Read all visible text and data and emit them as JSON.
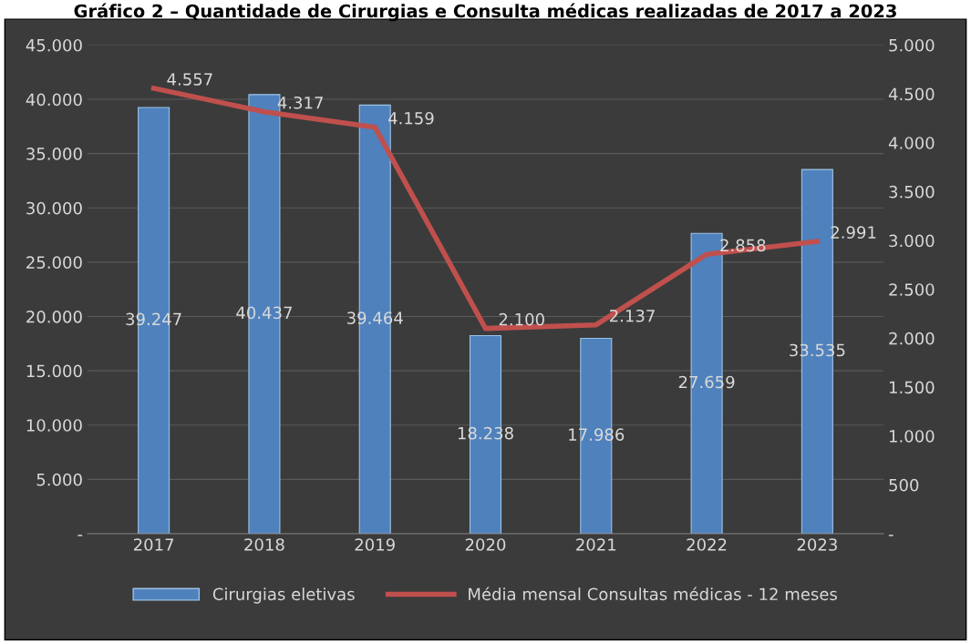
{
  "chart_data": {
    "type": "bar",
    "title": "Gráfico 2 – Quantidade de Cirurgias e Consulta médicas realizadas de 2017 a 2023",
    "categories": [
      "2017",
      "2018",
      "2019",
      "2020",
      "2021",
      "2022",
      "2023"
    ],
    "series": [
      {
        "name": "Cirurgias eletivas",
        "color": "#4f81bd",
        "values": [
          39247,
          40437,
          39464,
          18238,
          17986,
          27659,
          33535
        ],
        "value_labels": [
          "39.247",
          "40.437",
          "39.464",
          "18.238",
          "17.986",
          "27.659",
          "33.535"
        ]
      },
      {
        "name": "Média mensal Consultas médicas - 12 meses",
        "type": "line",
        "axis": "y2",
        "color": "#c0504d",
        "values": [
          4557,
          4317,
          4159,
          2100,
          2137,
          2858,
          2991
        ],
        "value_labels": [
          "4.557",
          "4.317",
          "4.159",
          "2.100",
          "2.137",
          "2.858",
          "2.991"
        ]
      }
    ],
    "ylim": [
      0,
      45000
    ],
    "yticks": [
      {
        "value": 0,
        "label": "-"
      },
      {
        "value": 5000,
        "label": "5.000"
      },
      {
        "value": 10000,
        "label": "10.000"
      },
      {
        "value": 15000,
        "label": "15.000"
      },
      {
        "value": 20000,
        "label": "20.000"
      },
      {
        "value": 25000,
        "label": "25.000"
      },
      {
        "value": 30000,
        "label": "30.000"
      },
      {
        "value": 35000,
        "label": "35.000"
      },
      {
        "value": 40000,
        "label": "40.000"
      },
      {
        "value": 45000,
        "label": "45.000"
      }
    ],
    "y2lim": [
      0,
      5000
    ],
    "y2ticks": [
      {
        "value": 0,
        "label": "-"
      },
      500,
      {
        "value": 1000,
        "label": "1.000"
      },
      {
        "value": 1500,
        "label": "1.500"
      },
      {
        "value": 2000,
        "label": "2.000"
      },
      {
        "value": 2500,
        "label": "2.500"
      },
      {
        "value": 3000,
        "label": "3.000"
      },
      {
        "value": 3500,
        "label": "3.500"
      },
      {
        "value": 4000,
        "label": "4.000"
      },
      {
        "value": 4500,
        "label": "4.500"
      },
      {
        "value": 5000,
        "label": "5.000"
      }
    ],
    "grid": "y",
    "legend": "bottom",
    "marker": "none",
    "line_style": "solid"
  }
}
